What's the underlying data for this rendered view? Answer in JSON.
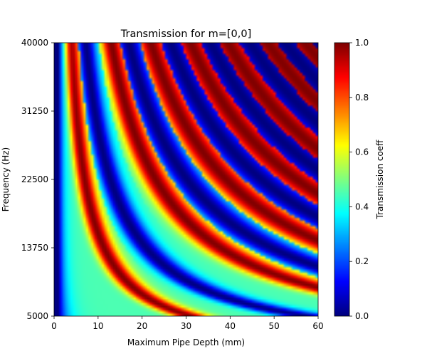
{
  "chart_data": {
    "type": "heatmap",
    "title": "Transmission for m=[0,0]",
    "xlabel": "Maximum Pipe Depth (mm)",
    "ylabel": "Frequency (Hz)",
    "xlim": [
      0,
      60
    ],
    "ylim": [
      5000,
      40000
    ],
    "x_ticks": [
      "0",
      "10",
      "20",
      "30",
      "40",
      "50",
      "60"
    ],
    "y_ticks": [
      "5000",
      "13750",
      "22500",
      "31250",
      "40000"
    ],
    "colorbar": {
      "label": "Transmission coeff",
      "range": [
        0.0,
        1.0
      ],
      "ticks": [
        "0.0",
        "0.2",
        "0.4",
        "0.6",
        "0.8",
        "1.0"
      ],
      "colormap": "jet"
    },
    "background_value": 0.45,
    "resonance_sequence": "orders 1-14 alternate peak (1.0) then dip (0.0); each ridge follows frequency × depth = constant",
    "resonance_ridges": [
      {
        "order": 1,
        "kind": "peak",
        "depth_at_5000_Hz_mm": 30.0,
        "depth_at_40000_Hz_mm": 3.9
      },
      {
        "order": 2,
        "kind": "dip",
        "depth_at_5000_Hz_mm": 57.0,
        "depth_at_40000_Hz_mm": 7.2
      },
      {
        "order": 3,
        "kind": "peak",
        "depth_at_40000_Hz_mm": 13.0
      },
      {
        "order": 4,
        "kind": "dip",
        "depth_at_40000_Hz_mm": 17.0
      },
      {
        "order": 5,
        "kind": "peak",
        "depth_at_40000_Hz_mm": 22.0
      },
      {
        "order": 6,
        "kind": "dip",
        "depth_at_40000_Hz_mm": 26.5
      },
      {
        "order": 7,
        "kind": "peak",
        "depth_at_40000_Hz_mm": 31.0
      },
      {
        "order": 8,
        "kind": "dip",
        "depth_at_40000_Hz_mm": 35.5
      },
      {
        "order": 9,
        "kind": "peak",
        "depth_at_40000_Hz_mm": 39.5
      },
      {
        "order": 10,
        "kind": "dip",
        "depth_at_40000_Hz_mm": 44.5
      },
      {
        "order": 11,
        "kind": "peak",
        "depth_at_40000_Hz_mm": 48.5
      },
      {
        "order": 12,
        "kind": "dip",
        "depth_at_40000_Hz_mm": 52.5
      },
      {
        "order": 13,
        "kind": "peak",
        "depth_at_40000_Hz_mm": 57.0
      },
      {
        "order": 14,
        "kind": "dip",
        "depth_at_40000_Hz_mm": 60.5
      }
    ],
    "low_depth_band": {
      "depth_range_mm": [
        0,
        1
      ],
      "value": 0.0
    }
  }
}
